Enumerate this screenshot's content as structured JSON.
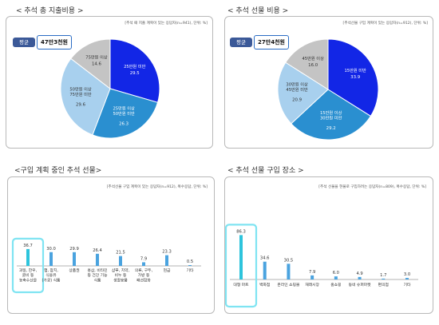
{
  "sections": {
    "total_spending": "< 추석 총 지출비용 >",
    "gift_spending": "< 추석 선물 비용 >",
    "planned_gifts": "<구입 계획 중인 추석 선물>",
    "purchase_place": "< 추석 선물 구입 장소 >"
  },
  "panels": {
    "total_spending": {
      "note": "[추석 때 지출 계획이 있는 응답자(n=941), 단위: %]",
      "avg_label": "평균",
      "avg_value": "47만3천원"
    },
    "gift_spending": {
      "note": "[추석선물 구입 계획이 있는 응답자(n=912), 단위: %]",
      "avg_label": "평균",
      "avg_value": "27만4천원"
    },
    "planned_gifts": {
      "note": "[추석선물 구입 계획이 있는 응답자(n=912), 복수응답, 단위: %]"
    },
    "purchase_place": {
      "note": "[추석 선물을 현물로 구입하려는 응답자(n=809), 복수응답, 단위: %]"
    }
  },
  "colors": {
    "blue_dark": "#1226e6",
    "blue_mid": "#2a8fd0",
    "blue_light": "#a8d0ee",
    "gray": "#c4c4c4",
    "bar": "#4aa3df",
    "highlight_bar": "#2dc4dc",
    "highlight_box": "#7fe4f2",
    "avg_badge": "#3b5998"
  },
  "chart_data": [
    {
      "type": "pie",
      "categories": [
        "25만원 미만",
        "25만원 이상 50만원 미만",
        "50만원 이상 75만원 미만",
        "75만원 이상"
      ],
      "values": [
        29.5,
        26.3,
        29.6,
        14.6
      ],
      "title": ""
    },
    {
      "type": "pie",
      "categories": [
        "15만원 미만",
        "15만원 이상 30만원 미만",
        "30만원 이상 45만원 미만",
        "45만원 이상"
      ],
      "values": [
        33.9,
        29.2,
        20.9,
        16.0
      ],
      "title": ""
    },
    {
      "type": "bar",
      "categories": [
        "과일, 한우, 굴비 등 농축수산물",
        "햄, 참치, 식용유 (가공) 식품",
        "상품권",
        "홍삼, 비타민 등 건강 기능 식품",
        "샴푸, 치약, 비누 등 생활용품",
        "의류, 구두, 가방 등 패션잡화",
        "현금",
        "기타"
      ],
      "values": [
        36.7,
        30.0,
        29.9,
        26.4,
        21.5,
        7.9,
        23.3,
        0.5
      ],
      "ylim": [
        0,
        40
      ],
      "highlight_index": 0
    },
    {
      "type": "bar",
      "categories": [
        "대형 마트",
        "백화점",
        "온라인 쇼핑몰",
        "재래시장",
        "홈쇼핑",
        "동네 슈퍼마켓",
        "편의점",
        "기타"
      ],
      "values": [
        86.3,
        34.6,
        30.5,
        7.9,
        6.0,
        4.9,
        1.7,
        3.0
      ],
      "ylim": [
        0,
        90
      ],
      "highlight_index": 0
    }
  ]
}
